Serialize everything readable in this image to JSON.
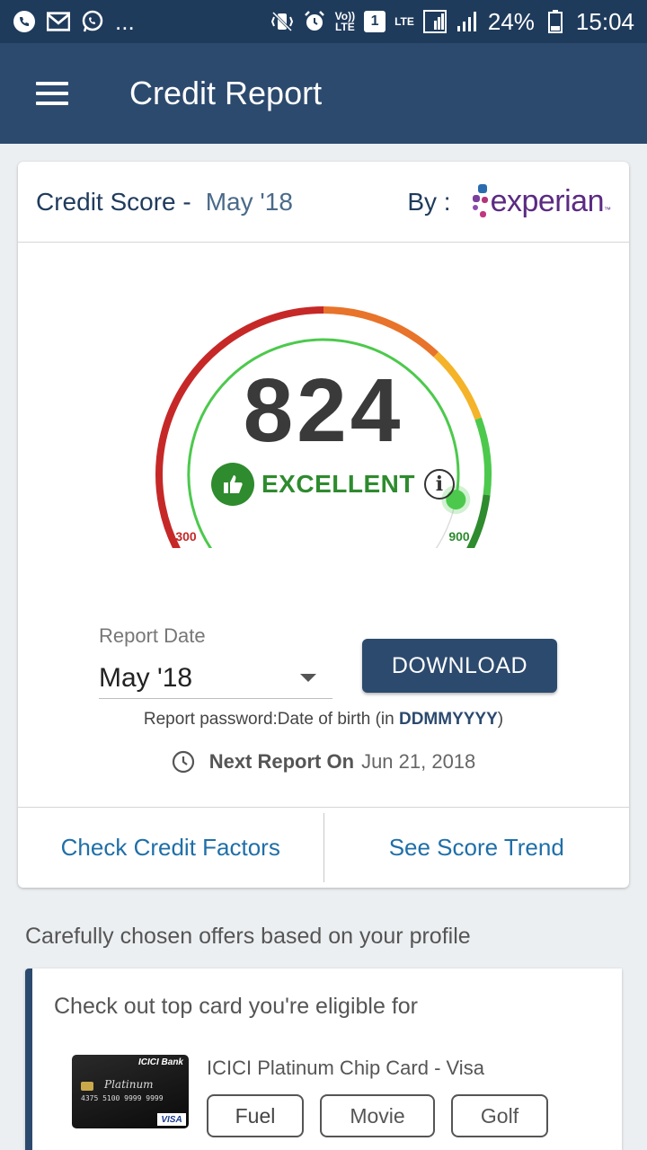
{
  "status_bar": {
    "dots": "...",
    "volte": "Vo))",
    "lte1": "LTE",
    "sim": "1",
    "lte2": "LTE",
    "battery": "24%",
    "time": "15:04"
  },
  "appbar": {
    "title": "Credit Report"
  },
  "score_card": {
    "label": "Credit Score -",
    "date": "May '18",
    "by_label": "By :",
    "bureau": "experian",
    "bureau_tm": "™",
    "score": "824",
    "rating": "EXCELLENT",
    "score_value": 824,
    "score_min": 300,
    "score_max": 900,
    "min_label": "300",
    "max_label": "900",
    "report_date_label": "Report Date",
    "report_date_value": "May '18",
    "download_label": "DOWNLOAD",
    "password_note": "Report password:Date of birth (in ",
    "password_format": "DDMMYYYY",
    "password_close": ")",
    "next_report_label": "Next Report On",
    "next_report_date": "Jun 21, 2018",
    "check_factors": "Check Credit Factors",
    "score_trend": "See Score Trend"
  },
  "offers": {
    "title": "Carefully chosen offers based on your profile",
    "card_title": "Check out top card you're eligible for",
    "card_name": "ICICI Platinum Chip Card - Visa",
    "card_image": {
      "bank": "ICICI Bank",
      "tier": "Platinum",
      "number": "4375  5100  9999  9999",
      "network": "VISA"
    },
    "tags": [
      "Fuel",
      "Movie",
      "Golf"
    ]
  },
  "colors": {
    "appbar": "#2c4a6e",
    "statusbar": "#1f3b5c",
    "excellent_green": "#2e8b2e",
    "gauge_red": "#c62828",
    "gauge_orange": "#e8732a",
    "gauge_yellow": "#f4b328",
    "gauge_green": "#4cc94c",
    "gauge_dark_green": "#2e8b2e"
  }
}
